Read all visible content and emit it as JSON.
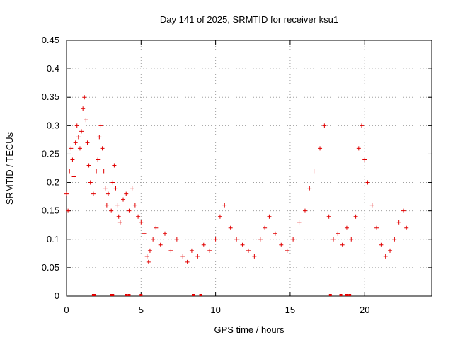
{
  "chart_data": {
    "type": "scatter",
    "title": "Day 141 of 2025, SRMTID for receiver ksu1",
    "xlabel": "GPS time / hours",
    "ylabel": "SRMTID / TECUs",
    "xlim": [
      0,
      24.5
    ],
    "ylim": [
      0,
      0.45
    ],
    "xticks": [
      0,
      5,
      10,
      15,
      20
    ],
    "xtick_labels": [
      "0",
      "5",
      "10",
      "15",
      "20"
    ],
    "yticks": [
      0,
      0.05,
      0.1,
      0.15,
      0.2,
      0.25,
      0.3,
      0.35,
      0.4,
      0.45
    ],
    "ytick_labels": [
      "0",
      "0.05",
      "0.1",
      "0.15",
      "0.2",
      "0.25",
      "0.3",
      "0.35",
      "0.4",
      "0.45"
    ],
    "grid": true,
    "marker": "plus",
    "color": "#e00000",
    "series": [
      {
        "name": "SRMTID",
        "x": [
          0.0,
          0.1,
          0.2,
          0.3,
          0.4,
          0.5,
          0.6,
          0.7,
          0.8,
          0.9,
          1.0,
          1.1,
          1.2,
          1.3,
          1.4,
          1.5,
          1.6,
          1.8,
          2.0,
          2.1,
          2.2,
          2.3,
          2.4,
          2.5,
          2.6,
          2.7,
          2.8,
          3.0,
          3.1,
          3.2,
          3.3,
          3.4,
          3.5,
          3.6,
          3.8,
          4.0,
          4.2,
          4.4,
          4.6,
          4.8,
          5.0,
          5.2,
          5.4,
          5.5,
          5.6,
          5.8,
          6.0,
          6.3,
          6.6,
          7.0,
          7.4,
          7.8,
          8.1,
          8.4,
          8.8,
          9.2,
          9.6,
          10.0,
          10.3,
          10.6,
          11.0,
          11.4,
          11.8,
          12.2,
          12.6,
          13.0,
          13.3,
          13.6,
          14.0,
          14.4,
          14.8,
          15.2,
          15.6,
          16.0,
          16.3,
          16.6,
          17.0,
          17.3,
          17.6,
          17.9,
          18.2,
          18.5,
          18.8,
          19.1,
          19.4,
          19.6,
          19.8,
          20.0,
          20.2,
          20.5,
          20.8,
          21.1,
          21.4,
          21.7,
          22.0,
          22.3,
          22.6,
          22.8
        ],
        "y": [
          0.18,
          0.15,
          0.22,
          0.26,
          0.24,
          0.21,
          0.27,
          0.3,
          0.28,
          0.26,
          0.29,
          0.33,
          0.35,
          0.31,
          0.27,
          0.23,
          0.2,
          0.18,
          0.22,
          0.24,
          0.28,
          0.3,
          0.26,
          0.22,
          0.19,
          0.16,
          0.18,
          0.15,
          0.2,
          0.23,
          0.19,
          0.16,
          0.14,
          0.13,
          0.17,
          0.18,
          0.15,
          0.19,
          0.16,
          0.14,
          0.13,
          0.11,
          0.07,
          0.06,
          0.08,
          0.1,
          0.12,
          0.09,
          0.11,
          0.08,
          0.1,
          0.07,
          0.06,
          0.08,
          0.07,
          0.09,
          0.08,
          0.1,
          0.14,
          0.16,
          0.12,
          0.1,
          0.09,
          0.08,
          0.07,
          0.1,
          0.12,
          0.14,
          0.11,
          0.09,
          0.08,
          0.1,
          0.13,
          0.15,
          0.19,
          0.22,
          0.26,
          0.3,
          0.14,
          0.1,
          0.11,
          0.09,
          0.12,
          0.1,
          0.14,
          0.26,
          0.3,
          0.24,
          0.2,
          0.16,
          0.12,
          0.09,
          0.07,
          0.08,
          0.1,
          0.13,
          0.15,
          0.12
        ]
      }
    ],
    "zero_flags_x": [
      1.8,
      1.9,
      3.0,
      3.1,
      4.0,
      4.2,
      5.0,
      8.5,
      9.0,
      17.7,
      18.4,
      18.8,
      19.0
    ]
  }
}
